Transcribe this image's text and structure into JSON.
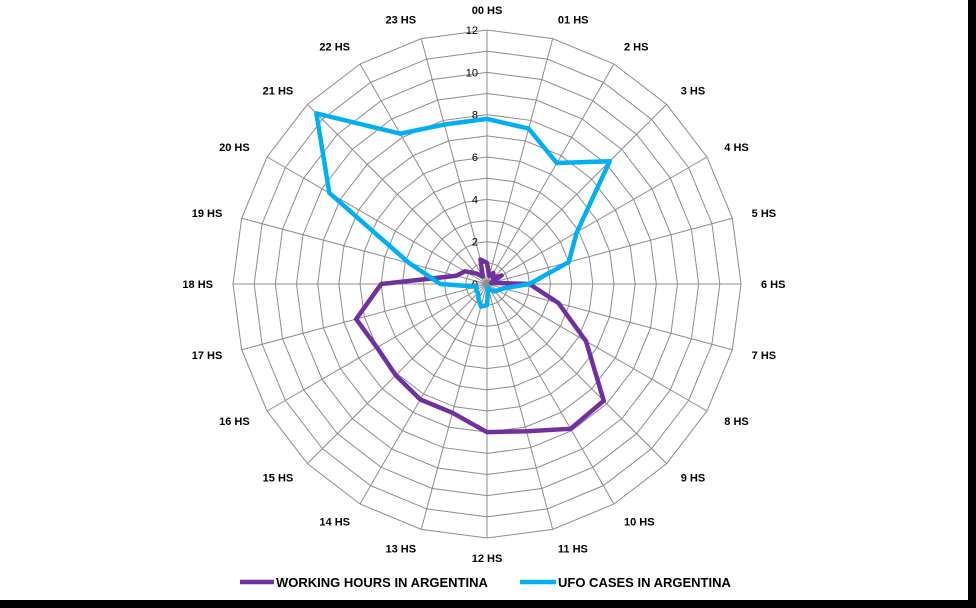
{
  "chart_data": {
    "type": "radar",
    "categories": [
      "00 HS",
      "01 HS",
      "2 HS",
      "3 HS",
      "4 HS",
      "5 HS",
      "6 HS",
      "7 HS",
      "8 HS",
      "9 HS",
      "10 HS",
      "11 HS",
      "12 HS",
      "13 HS",
      "14 HS",
      "15 HS",
      "16 HS",
      "17 HS",
      "18 HS",
      "19 HS",
      "20 HS",
      "21 HS",
      "22 HS",
      "23 HS"
    ],
    "rticks": [
      "0",
      "2",
      "4",
      "6",
      "8",
      "10",
      "12"
    ],
    "rlim": [
      0,
      12
    ],
    "grid": true,
    "legend_position": "bottom",
    "series": [
      {
        "name": "WORKING HOURS IN ARGENTINA",
        "color": "#7030a0",
        "values": [
          1.0,
          0.4,
          0.6,
          0.4,
          0.8,
          0.2,
          2.0,
          3.5,
          5.4,
          7.8,
          7.9,
          7.2,
          7.0,
          6.3,
          6.3,
          6.1,
          6.0,
          6.4,
          5.0,
          1.5,
          1.2,
          0.7,
          0.4,
          1.2
        ]
      },
      {
        "name": "UFO CASES IN ARGENTINA",
        "color": "#00b0f0",
        "values": [
          7.8,
          7.6,
          6.6,
          8.2,
          4.9,
          4.0,
          2.0,
          0.8,
          0.6,
          0.5,
          0.3,
          0.2,
          1.0,
          1.1,
          0.8,
          0.6,
          0.6,
          0.5,
          2.2,
          3.8,
          8.6,
          11.4,
          8.2,
          7.8
        ]
      }
    ]
  }
}
